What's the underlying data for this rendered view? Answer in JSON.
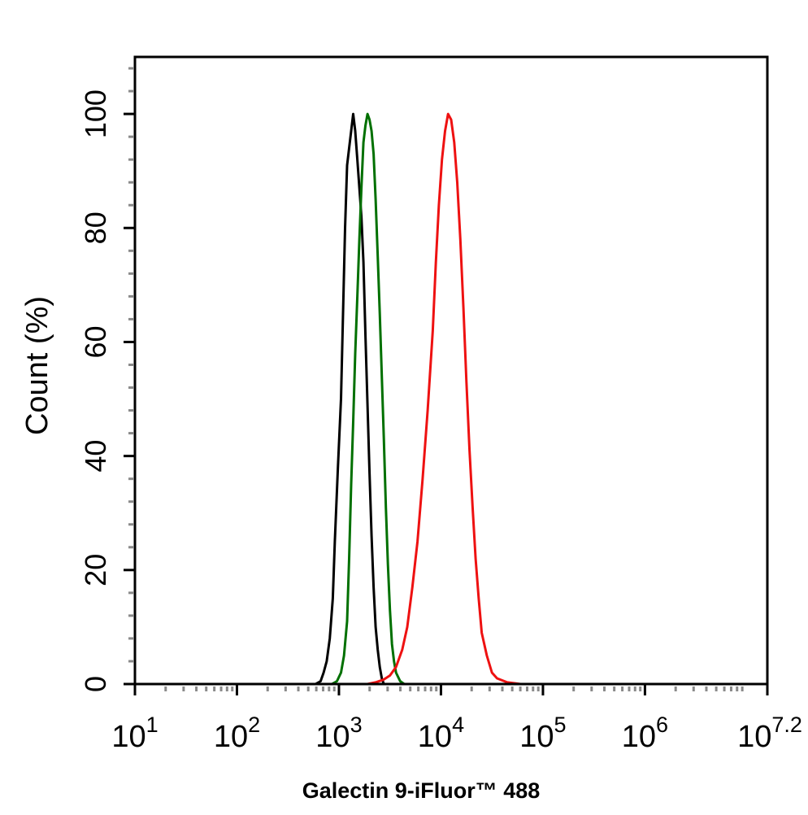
{
  "chart_data": {
    "type": "line",
    "title": "",
    "xlabel": "Galectin 9-iFluor™ 488",
    "ylabel": "Count  (%)",
    "x_scale": "log",
    "xlim": [
      10,
      15848932
    ],
    "ylim": [
      0,
      110
    ],
    "x_ticks": [
      {
        "value": 10,
        "base": "10",
        "exp": "1"
      },
      {
        "value": 100,
        "base": "10",
        "exp": "2"
      },
      {
        "value": 1000,
        "base": "10",
        "exp": "3"
      },
      {
        "value": 10000,
        "base": "10",
        "exp": "4"
      },
      {
        "value": 100000,
        "base": "10",
        "exp": "5"
      },
      {
        "value": 1000000,
        "base": "10",
        "exp": "6"
      },
      {
        "value": 15848932,
        "base": "10",
        "exp": "7.2"
      }
    ],
    "y_ticks": [
      0,
      20,
      40,
      60,
      80,
      100
    ],
    "grid": false,
    "legend": "none",
    "series": [
      {
        "color": "#000000",
        "points": [
          [
            589,
            0
          ],
          [
            661,
            0.5
          ],
          [
            707,
            2
          ],
          [
            759,
            4
          ],
          [
            813,
            8
          ],
          [
            871,
            15
          ],
          [
            912,
            25
          ],
          [
            977,
            38
          ],
          [
            1047,
            50
          ],
          [
            1097,
            65
          ],
          [
            1148,
            80
          ],
          [
            1202,
            91
          ],
          [
            1259,
            94
          ],
          [
            1318,
            97
          ],
          [
            1380,
            100
          ],
          [
            1445,
            97
          ],
          [
            1514,
            92
          ],
          [
            1585,
            87
          ],
          [
            1660,
            82
          ],
          [
            1738,
            74
          ],
          [
            1820,
            61
          ],
          [
            1905,
            49
          ],
          [
            1995,
            37
          ],
          [
            2089,
            26
          ],
          [
            2188,
            17
          ],
          [
            2291,
            10
          ],
          [
            2399,
            6
          ],
          [
            2512,
            3
          ],
          [
            2630,
            1
          ],
          [
            2754,
            0
          ]
        ]
      },
      {
        "color": "#007000",
        "points": [
          [
            851,
            0
          ],
          [
            955,
            0.5
          ],
          [
            1047,
            2
          ],
          [
            1122,
            5
          ],
          [
            1202,
            11
          ],
          [
            1259,
            22
          ],
          [
            1318,
            35
          ],
          [
            1380,
            46
          ],
          [
            1445,
            58
          ],
          [
            1514,
            68
          ],
          [
            1585,
            78
          ],
          [
            1660,
            87
          ],
          [
            1738,
            95
          ],
          [
            1820,
            98
          ],
          [
            1905,
            100
          ],
          [
            1995,
            99
          ],
          [
            2089,
            97
          ],
          [
            2188,
            93
          ],
          [
            2291,
            85
          ],
          [
            2399,
            75
          ],
          [
            2512,
            65
          ],
          [
            2630,
            54
          ],
          [
            2754,
            43
          ],
          [
            2884,
            31
          ],
          [
            3020,
            21
          ],
          [
            3162,
            13
          ],
          [
            3311,
            7
          ],
          [
            3467,
            4
          ],
          [
            3631,
            2
          ],
          [
            3981,
            0.5
          ],
          [
            4365,
            0
          ]
        ]
      },
      {
        "color": "#ee1111",
        "points": [
          [
            1905,
            0
          ],
          [
            2291,
            0.3
          ],
          [
            2754,
            0.8
          ],
          [
            3162,
            1.5
          ],
          [
            3631,
            3
          ],
          [
            4169,
            6
          ],
          [
            4677,
            10
          ],
          [
            5248,
            17
          ],
          [
            5888,
            25
          ],
          [
            6607,
            36
          ],
          [
            7413,
            48
          ],
          [
            8318,
            62
          ],
          [
            8913,
            74
          ],
          [
            9550,
            84
          ],
          [
            10233,
            92
          ],
          [
            10965,
            97
          ],
          [
            11749,
            100
          ],
          [
            12589,
            99
          ],
          [
            13490,
            95
          ],
          [
            14454,
            88
          ],
          [
            15488,
            78
          ],
          [
            16596,
            66
          ],
          [
            17783,
            53
          ],
          [
            19055,
            41
          ],
          [
            20417,
            31
          ],
          [
            21878,
            22
          ],
          [
            23442,
            15
          ],
          [
            25119,
            9
          ],
          [
            28184,
            5
          ],
          [
            31623,
            2
          ],
          [
            35481,
            1
          ],
          [
            44668,
            0.3
          ],
          [
            60256,
            0
          ]
        ]
      }
    ]
  }
}
